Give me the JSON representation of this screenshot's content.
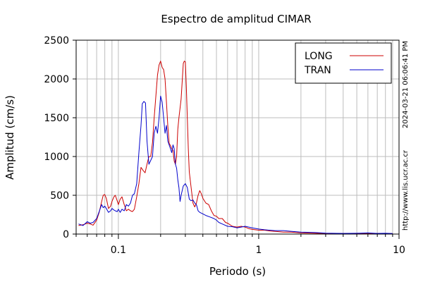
{
  "chart_data": {
    "type": "line",
    "title": "Espectro de amplitud CIMAR",
    "xlabel": "Periodo (s)",
    "ylabel": "Amplitud (cm/s)",
    "xscale": "log",
    "xlim": [
      0.05,
      10
    ],
    "ylim": [
      0,
      2500
    ],
    "x_ticks": [
      {
        "value": 0.1,
        "label": "0.1"
      },
      {
        "value": 1,
        "label": "1"
      },
      {
        "value": 10,
        "label": "10"
      }
    ],
    "y_ticks": [
      {
        "value": 0,
        "label": "0"
      },
      {
        "value": 500,
        "label": "500"
      },
      {
        "value": 1000,
        "label": "1000"
      },
      {
        "value": 1500,
        "label": "1500"
      },
      {
        "value": 2000,
        "label": "2000"
      },
      {
        "value": 2500,
        "label": "2500"
      }
    ],
    "grid": true,
    "legend_position": "top-right",
    "series": [
      {
        "name": "LONG",
        "color": "#cc0000",
        "points": [
          [
            0.052,
            110
          ],
          [
            0.056,
            120
          ],
          [
            0.06,
            140
          ],
          [
            0.063,
            130
          ],
          [
            0.066,
            115
          ],
          [
            0.07,
            180
          ],
          [
            0.073,
            280
          ],
          [
            0.076,
            420
          ],
          [
            0.078,
            500
          ],
          [
            0.08,
            510
          ],
          [
            0.082,
            460
          ],
          [
            0.085,
            330
          ],
          [
            0.088,
            360
          ],
          [
            0.09,
            420
          ],
          [
            0.093,
            480
          ],
          [
            0.095,
            500
          ],
          [
            0.098,
            430
          ],
          [
            0.1,
            380
          ],
          [
            0.103,
            450
          ],
          [
            0.106,
            480
          ],
          [
            0.11,
            380
          ],
          [
            0.114,
            300
          ],
          [
            0.118,
            320
          ],
          [
            0.122,
            300
          ],
          [
            0.126,
            290
          ],
          [
            0.13,
            320
          ],
          [
            0.135,
            480
          ],
          [
            0.14,
            650
          ],
          [
            0.145,
            860
          ],
          [
            0.15,
            820
          ],
          [
            0.155,
            790
          ],
          [
            0.16,
            900
          ],
          [
            0.165,
            1000
          ],
          [
            0.17,
            1000
          ],
          [
            0.175,
            1180
          ],
          [
            0.18,
            1500
          ],
          [
            0.185,
            1780
          ],
          [
            0.19,
            2050
          ],
          [
            0.195,
            2180
          ],
          [
            0.2,
            2230
          ],
          [
            0.205,
            2150
          ],
          [
            0.21,
            2120
          ],
          [
            0.215,
            2000
          ],
          [
            0.22,
            1700
          ],
          [
            0.225,
            1400
          ],
          [
            0.23,
            1170
          ],
          [
            0.235,
            1140
          ],
          [
            0.24,
            1100
          ],
          [
            0.245,
            1080
          ],
          [
            0.25,
            940
          ],
          [
            0.255,
            900
          ],
          [
            0.26,
            1000
          ],
          [
            0.265,
            1350
          ],
          [
            0.27,
            1500
          ],
          [
            0.28,
            1740
          ],
          [
            0.29,
            2200
          ],
          [
            0.295,
            2230
          ],
          [
            0.3,
            2220
          ],
          [
            0.305,
            1900
          ],
          [
            0.31,
            1500
          ],
          [
            0.315,
            1100
          ],
          [
            0.32,
            800
          ],
          [
            0.33,
            600
          ],
          [
            0.34,
            400
          ],
          [
            0.35,
            350
          ],
          [
            0.36,
            400
          ],
          [
            0.37,
            500
          ],
          [
            0.38,
            560
          ],
          [
            0.39,
            520
          ],
          [
            0.4,
            460
          ],
          [
            0.42,
            400
          ],
          [
            0.44,
            380
          ],
          [
            0.46,
            300
          ],
          [
            0.48,
            240
          ],
          [
            0.5,
            230
          ],
          [
            0.52,
            200
          ],
          [
            0.55,
            200
          ],
          [
            0.58,
            150
          ],
          [
            0.6,
            140
          ],
          [
            0.65,
            100
          ],
          [
            0.7,
            90
          ],
          [
            0.75,
            100
          ],
          [
            0.8,
            90
          ],
          [
            0.85,
            70
          ],
          [
            0.9,
            60
          ],
          [
            1.0,
            50
          ],
          [
            1.1,
            50
          ],
          [
            1.2,
            40
          ],
          [
            1.3,
            35
          ],
          [
            1.5,
            25
          ],
          [
            1.7,
            25
          ],
          [
            2.0,
            15
          ],
          [
            2.5,
            10
          ],
          [
            3.0,
            8
          ],
          [
            4.0,
            6
          ],
          [
            5.0,
            8
          ],
          [
            6.0,
            5
          ],
          [
            7.0,
            8
          ],
          [
            8.0,
            5
          ],
          [
            9.0,
            5
          ]
        ]
      },
      {
        "name": "TRAN",
        "color": "#0000cc",
        "points": [
          [
            0.052,
            130
          ],
          [
            0.056,
            110
          ],
          [
            0.06,
            160
          ],
          [
            0.063,
            140
          ],
          [
            0.066,
            150
          ],
          [
            0.07,
            200
          ],
          [
            0.073,
            290
          ],
          [
            0.076,
            380
          ],
          [
            0.078,
            340
          ],
          [
            0.08,
            360
          ],
          [
            0.082,
            330
          ],
          [
            0.085,
            280
          ],
          [
            0.088,
            300
          ],
          [
            0.09,
            330
          ],
          [
            0.093,
            310
          ],
          [
            0.095,
            300
          ],
          [
            0.098,
            290
          ],
          [
            0.1,
            320
          ],
          [
            0.103,
            280
          ],
          [
            0.106,
            320
          ],
          [
            0.11,
            300
          ],
          [
            0.114,
            380
          ],
          [
            0.118,
            360
          ],
          [
            0.122,
            400
          ],
          [
            0.126,
            500
          ],
          [
            0.13,
            520
          ],
          [
            0.135,
            650
          ],
          [
            0.14,
            1050
          ],
          [
            0.145,
            1400
          ],
          [
            0.148,
            1680
          ],
          [
            0.152,
            1710
          ],
          [
            0.156,
            1690
          ],
          [
            0.16,
            1200
          ],
          [
            0.165,
            900
          ],
          [
            0.17,
            950
          ],
          [
            0.175,
            1000
          ],
          [
            0.18,
            1300
          ],
          [
            0.185,
            1390
          ],
          [
            0.19,
            1300
          ],
          [
            0.195,
            1500
          ],
          [
            0.2,
            1780
          ],
          [
            0.205,
            1700
          ],
          [
            0.21,
            1500
          ],
          [
            0.215,
            1300
          ],
          [
            0.22,
            1400
          ],
          [
            0.225,
            1200
          ],
          [
            0.23,
            1150
          ],
          [
            0.235,
            1100
          ],
          [
            0.24,
            1050
          ],
          [
            0.245,
            1150
          ],
          [
            0.25,
            1100
          ],
          [
            0.255,
            900
          ],
          [
            0.26,
            850
          ],
          [
            0.265,
            700
          ],
          [
            0.27,
            600
          ],
          [
            0.275,
            420
          ],
          [
            0.28,
            500
          ],
          [
            0.29,
            620
          ],
          [
            0.3,
            650
          ],
          [
            0.31,
            600
          ],
          [
            0.32,
            450
          ],
          [
            0.33,
            430
          ],
          [
            0.34,
            440
          ],
          [
            0.35,
            400
          ],
          [
            0.36,
            380
          ],
          [
            0.37,
            300
          ],
          [
            0.38,
            280
          ],
          [
            0.4,
            260
          ],
          [
            0.42,
            240
          ],
          [
            0.45,
            220
          ],
          [
            0.48,
            200
          ],
          [
            0.5,
            180
          ],
          [
            0.52,
            150
          ],
          [
            0.55,
            130
          ],
          [
            0.6,
            100
          ],
          [
            0.65,
            95
          ],
          [
            0.7,
            80
          ],
          [
            0.75,
            90
          ],
          [
            0.8,
            100
          ],
          [
            0.85,
            90
          ],
          [
            0.9,
            80
          ],
          [
            1.0,
            65
          ],
          [
            1.1,
            55
          ],
          [
            1.2,
            50
          ],
          [
            1.3,
            45
          ],
          [
            1.5,
            45
          ],
          [
            1.7,
            35
          ],
          [
            2.0,
            25
          ],
          [
            2.5,
            20
          ],
          [
            3.0,
            12
          ],
          [
            4.0,
            8
          ],
          [
            5.0,
            10
          ],
          [
            6.0,
            15
          ],
          [
            7.0,
            8
          ],
          [
            8.0,
            10
          ],
          [
            9.0,
            6
          ]
        ]
      }
    ]
  },
  "side_notes": {
    "timestamp": "2024-03-21 06:06:41 PM",
    "url": "http://www.lis.ucr.ac.cr"
  }
}
